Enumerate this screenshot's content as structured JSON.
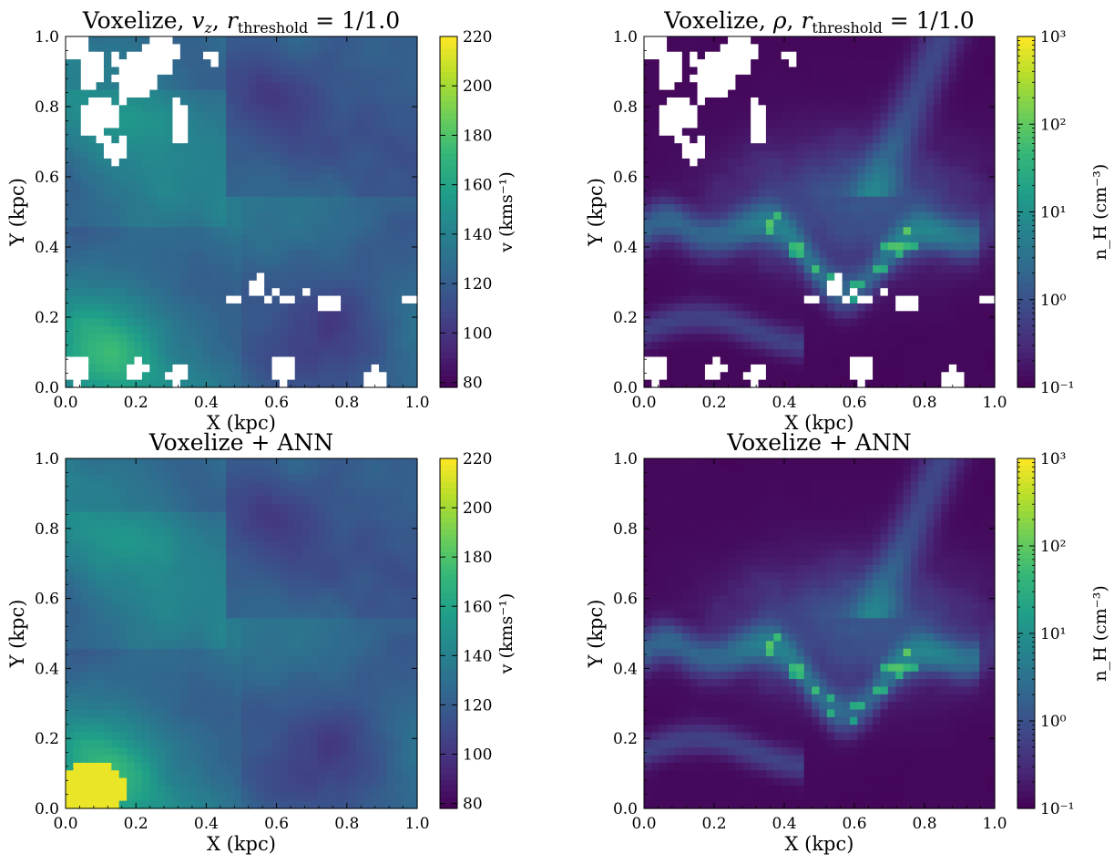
{
  "figure": {
    "layout": "2x2 grid of color-mapped images with colorbars",
    "colormap": "viridis",
    "colormap_stops": [
      "#440154",
      "#482878",
      "#3e4989",
      "#31688e",
      "#26828e",
      "#1f9e89",
      "#35b779",
      "#6ece58",
      "#b5de2b",
      "#fde725"
    ],
    "missing_color": "#ffffff"
  },
  "chart_data": [
    {
      "type": "heatmap",
      "panel": "top-left",
      "title": "Voxelize, v_z, r_threshold = 1/1.0",
      "title_parts": [
        "Voxelize, ",
        "v",
        "z",
        ", ",
        "r",
        "threshold",
        " = 1/1.0"
      ],
      "xlabel": "X (kpc)",
      "ylabel": "Y (kpc)",
      "xlim": [
        0.0,
        1.0
      ],
      "ylim": [
        0.0,
        1.0
      ],
      "xticks": [
        "0.0",
        "0.2",
        "0.4",
        "0.6",
        "0.8",
        "1.0"
      ],
      "yticks": [
        "0.0",
        "0.2",
        "0.4",
        "0.6",
        "0.8",
        "1.0"
      ],
      "quantity": "line-of-sight velocity",
      "colorbar": {
        "scale": "linear",
        "range": [
          78,
          220
        ],
        "ticks": [
          "80",
          "100",
          "120",
          "140",
          "160",
          "180",
          "200",
          "220"
        ],
        "tick_values": [
          80,
          100,
          120,
          140,
          160,
          180,
          200,
          220
        ],
        "label": "v (kms⁻¹)"
      },
      "has_missing_voxels": true
    },
    {
      "type": "heatmap",
      "panel": "top-right",
      "title": "Voxelize, ρ, r_threshold = 1/1.0",
      "title_parts": [
        "Voxelize, ",
        "ρ",
        "",
        ", ",
        "r",
        "threshold",
        " = 1/1.0"
      ],
      "xlabel": "X (kpc)",
      "ylabel": "Y (kpc)",
      "xlim": [
        0.0,
        1.0
      ],
      "ylim": [
        0.0,
        1.0
      ],
      "xticks": [
        "0.0",
        "0.2",
        "0.4",
        "0.6",
        "0.8",
        "1.0"
      ],
      "yticks": [
        "0.0",
        "0.2",
        "0.4",
        "0.6",
        "0.8",
        "1.0"
      ],
      "quantity": "hydrogen number density",
      "colorbar": {
        "scale": "log",
        "range": [
          0.1,
          1000
        ],
        "ticks": [
          "10⁻¹",
          "10⁰",
          "10¹",
          "10²",
          "10³"
        ],
        "tick_values": [
          0.1,
          1,
          10,
          100,
          1000
        ],
        "label": "n_H (cm⁻³)"
      },
      "has_missing_voxels": true
    },
    {
      "type": "heatmap",
      "panel": "bottom-left",
      "title": "Voxelize + ANN",
      "title_parts": [
        "Voxelize + ANN"
      ],
      "xlabel": "X (kpc)",
      "ylabel": "Y (kpc)",
      "xlim": [
        0.0,
        1.0
      ],
      "ylim": [
        0.0,
        1.0
      ],
      "xticks": [
        "0.0",
        "0.2",
        "0.4",
        "0.6",
        "0.8",
        "1.0"
      ],
      "yticks": [
        "0.0",
        "0.2",
        "0.4",
        "0.6",
        "0.8",
        "1.0"
      ],
      "quantity": "line-of-sight velocity",
      "colorbar": {
        "scale": "linear",
        "range": [
          78,
          220
        ],
        "ticks": [
          "80",
          "100",
          "120",
          "140",
          "160",
          "180",
          "200",
          "220"
        ],
        "tick_values": [
          80,
          100,
          120,
          140,
          160,
          180,
          200,
          220
        ],
        "label": "v (kms⁻¹)"
      },
      "has_missing_voxels": false
    },
    {
      "type": "heatmap",
      "panel": "bottom-right",
      "title": "Voxelize + ANN",
      "title_parts": [
        "Voxelize + ANN"
      ],
      "xlabel": "X (kpc)",
      "ylabel": "Y (kpc)",
      "xlim": [
        0.0,
        1.0
      ],
      "ylim": [
        0.0,
        1.0
      ],
      "xticks": [
        "0.0",
        "0.2",
        "0.4",
        "0.6",
        "0.8",
        "1.0"
      ],
      "yticks": [
        "0.0",
        "0.2",
        "0.4",
        "0.6",
        "0.8",
        "1.0"
      ],
      "quantity": "hydrogen number density",
      "colorbar": {
        "scale": "log",
        "range": [
          0.1,
          1000
        ],
        "ticks": [
          "10⁻¹",
          "10⁰",
          "10¹",
          "10²",
          "10³"
        ],
        "tick_values": [
          0.1,
          1,
          10,
          100,
          1000
        ],
        "label": "n_H (cm⁻³)"
      },
      "has_missing_voxels": false
    }
  ]
}
